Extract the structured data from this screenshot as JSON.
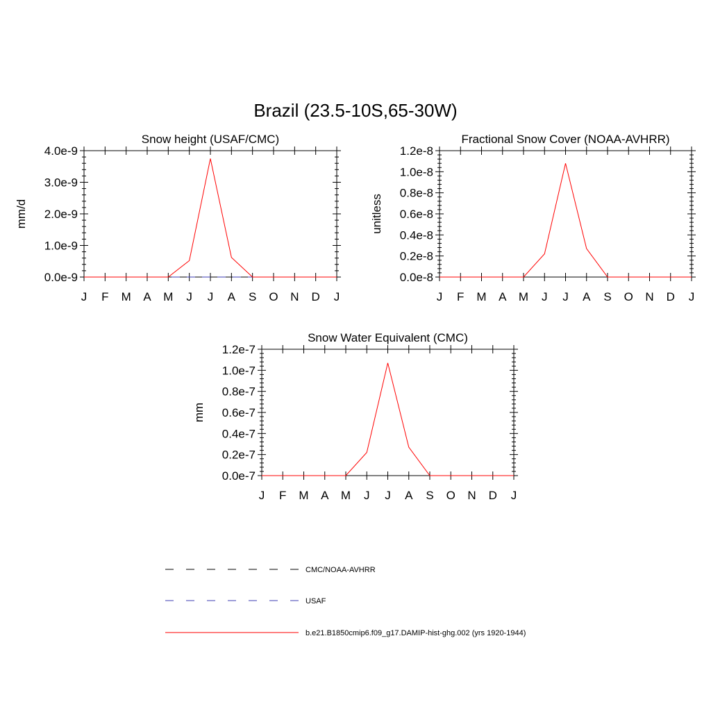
{
  "figure": {
    "title": "Brazil (23.5-10S,65-30W)"
  },
  "colors": {
    "model": "#ff0000",
    "cmc_noaa": "#000000",
    "usaf": "#3b3bb0"
  },
  "chart_data": [
    {
      "type": "line",
      "title": "Snow height (USAF/CMC)",
      "ylabel": "mm/d",
      "xlabel": "",
      "categories": [
        "J",
        "F",
        "M",
        "A",
        "M",
        "J",
        "J",
        "A",
        "S",
        "O",
        "N",
        "D",
        "J"
      ],
      "ylim": [
        0,
        4e-09
      ],
      "ytick_values": [
        0,
        1e-09,
        2e-09,
        3e-09,
        4e-09
      ],
      "ytick_labels": [
        "0.0e-9",
        "1.0e-9",
        "2.0e-9",
        "3.0e-9",
        "4.0e-9"
      ],
      "grid": false,
      "series": [
        {
          "name": "CMC/NOAA-AVHRR",
          "values": [
            0,
            0,
            0,
            0,
            0,
            0,
            0,
            0,
            0,
            0,
            0,
            0,
            0
          ]
        },
        {
          "name": "USAF",
          "values": [
            0,
            0,
            0,
            0,
            0,
            0,
            0,
            0,
            0,
            0,
            0,
            0,
            0
          ]
        },
        {
          "name": "b.e21.B1850cmip6.f09_g17.DAMIP-hist-ghg.002 (yrs 1920-1944)",
          "values": [
            0,
            0,
            0,
            0,
            0,
            5.2e-10,
            3.75e-09,
            6.2e-10,
            0,
            0,
            0,
            0,
            0
          ]
        }
      ]
    },
    {
      "type": "line",
      "title": "Fractional Snow Cover (NOAA-AVHRR)",
      "ylabel": "unitless",
      "xlabel": "",
      "categories": [
        "J",
        "F",
        "M",
        "A",
        "M",
        "J",
        "J",
        "A",
        "S",
        "O",
        "N",
        "D",
        "J"
      ],
      "ylim": [
        0,
        1.2e-08
      ],
      "ytick_values": [
        0,
        2e-09,
        4e-09,
        6e-09,
        8e-09,
        1e-08,
        1.2e-08
      ],
      "ytick_labels": [
        "0.0e-8",
        "0.2e-8",
        "0.4e-8",
        "0.6e-8",
        "0.8e-8",
        "1.0e-8",
        "1.2e-8"
      ],
      "grid": false,
      "series": [
        {
          "name": "CMC/NOAA-AVHRR",
          "values": [
            0,
            0,
            0,
            0,
            0,
            0,
            0,
            0,
            0,
            0,
            0,
            0,
            0
          ]
        },
        {
          "name": "b.e21.B1850cmip6.f09_g17.DAMIP-hist-ghg.002 (yrs 1920-1944)",
          "values": [
            0,
            0,
            0,
            0,
            0,
            2.2e-09,
            1.08e-08,
            2.7e-09,
            0,
            0,
            0,
            0,
            0
          ]
        }
      ]
    },
    {
      "type": "line",
      "title": "Snow Water Equivalent (CMC)",
      "ylabel": "mm",
      "xlabel": "",
      "categories": [
        "J",
        "F",
        "M",
        "A",
        "M",
        "J",
        "J",
        "A",
        "S",
        "O",
        "N",
        "D",
        "J"
      ],
      "ylim": [
        0,
        1.2e-07
      ],
      "ytick_values": [
        0,
        2e-08,
        4e-08,
        6e-08,
        8e-08,
        1e-07,
        1.2e-07
      ],
      "ytick_labels": [
        "0.0e-7",
        "0.2e-7",
        "0.4e-7",
        "0.6e-7",
        "0.8e-7",
        "1.0e-7",
        "1.2e-7"
      ],
      "grid": false,
      "series": [
        {
          "name": "CMC/NOAA-AVHRR",
          "values": [
            0,
            0,
            0,
            0,
            0,
            0,
            0,
            0,
            0,
            0,
            0,
            0,
            0
          ]
        },
        {
          "name": "b.e21.B1850cmip6.f09_g17.DAMIP-hist-ghg.002 (yrs 1920-1944)",
          "values": [
            0,
            0,
            0,
            0,
            0,
            2.2e-08,
            1.07e-07,
            2.7e-08,
            0,
            0,
            0,
            0,
            0
          ]
        }
      ]
    }
  ],
  "legend": {
    "placement": "bottom-center",
    "entries": [
      {
        "label": "CMC/NOAA-AVHRR",
        "style": "dashed",
        "color": "#000000"
      },
      {
        "label": "USAF",
        "style": "dashed",
        "color": "#3b3bb0"
      },
      {
        "label": "b.e21.B1850cmip6.f09_g17.DAMIP-hist-ghg.002 (yrs 1920-1944)",
        "style": "solid",
        "color": "#ff0000"
      }
    ]
  }
}
